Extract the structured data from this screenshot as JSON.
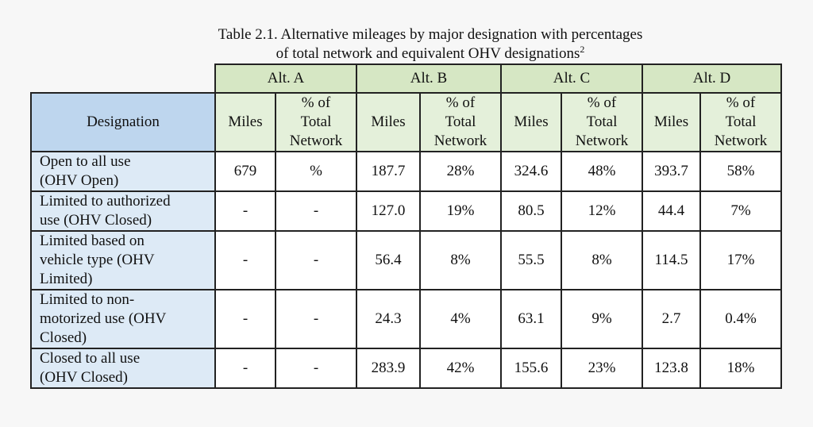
{
  "caption": {
    "line1": "Table 2.1. Alternative mileages by major designation with percentages",
    "line2": "of total network and equivalent OHV designations",
    "footnote": "2"
  },
  "header": {
    "designation": "Designation",
    "alts": [
      "Alt. A",
      "Alt. B",
      "Alt. C",
      "Alt. D"
    ],
    "miles": "Miles",
    "pct": [
      "% of",
      "Total",
      "Network"
    ]
  },
  "rows": [
    {
      "label": [
        "Open to all use",
        "(OHV Open)"
      ],
      "values": [
        "679",
        "%",
        "187.7",
        "28%",
        "324.6",
        "48%",
        "393.7",
        "58%"
      ]
    },
    {
      "label": [
        "Limited to authorized",
        "use (OHV Closed)"
      ],
      "values": [
        "-",
        "-",
        "127.0",
        "19%",
        "80.5",
        "12%",
        "44.4",
        "7%"
      ]
    },
    {
      "label": [
        "Limited based on",
        "vehicle type (OHV",
        "Limited)"
      ],
      "values": [
        "-",
        "-",
        "56.4",
        "8%",
        "55.5",
        "8%",
        "114.5",
        "17%"
      ]
    },
    {
      "label": [
        "Limited to non-",
        "motorized use (OHV",
        "Closed)"
      ],
      "values": [
        "-",
        "-",
        "24.3",
        "4%",
        "63.1",
        "9%",
        "2.7",
        "0.4%"
      ]
    },
    {
      "label": [
        "Closed to all use",
        "(OHV Closed)"
      ],
      "values": [
        "-",
        "-",
        "283.9",
        "42%",
        "155.6",
        "23%",
        "123.8",
        "18%"
      ]
    }
  ]
}
